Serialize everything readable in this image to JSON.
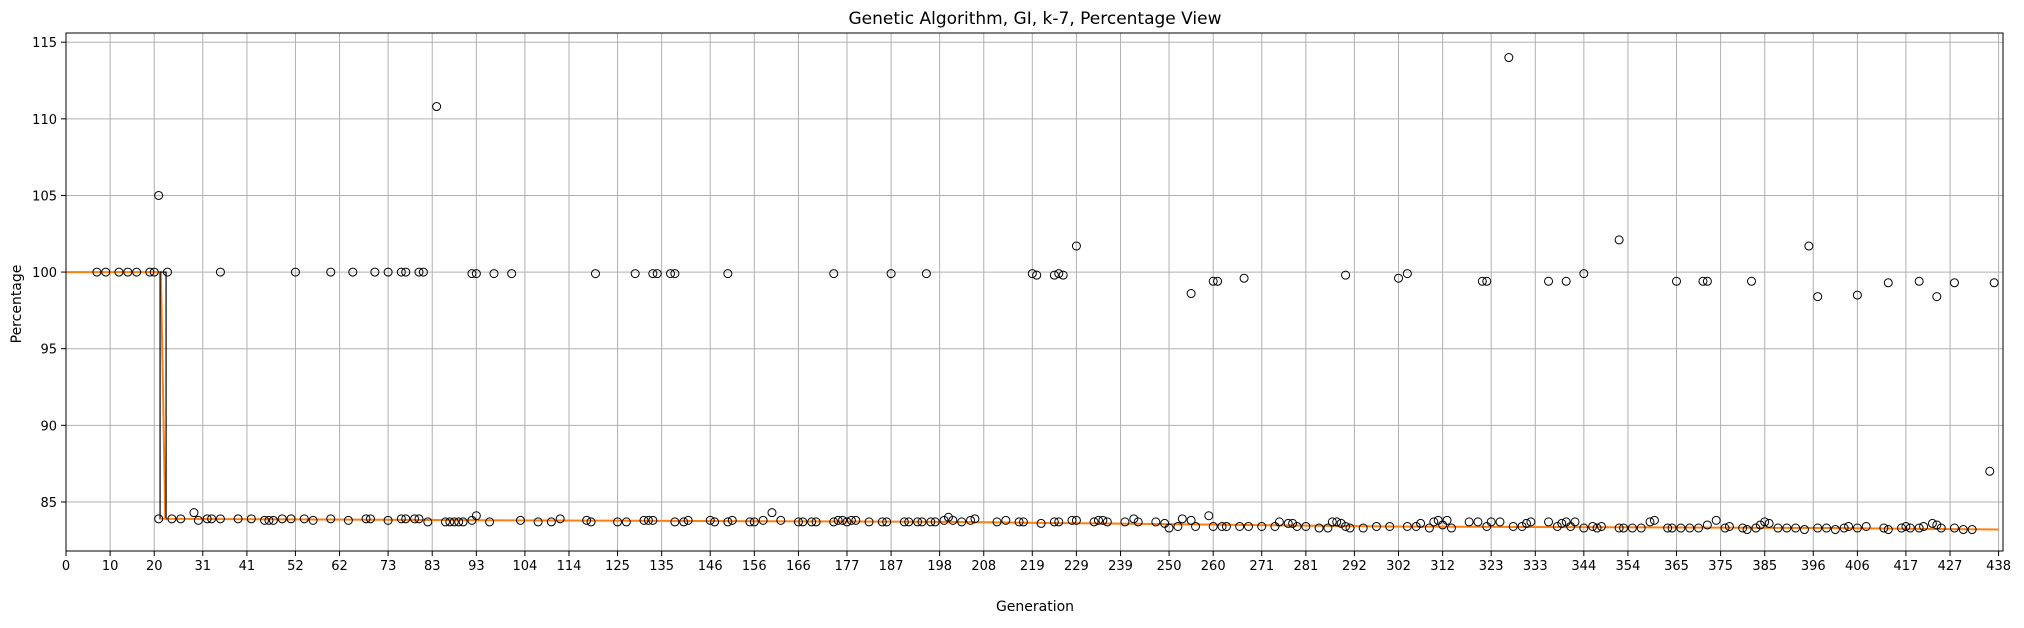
{
  "chart_data": {
    "type": "box",
    "title": "Genetic Algorithm, GI, k-7, Percentage View",
    "xlabel": "Generation",
    "ylabel": "Percentage",
    "xlim": [
      0,
      439
    ],
    "ylim": [
      81.8,
      115.6
    ],
    "x_ticks": [
      0,
      10,
      20,
      31,
      41,
      52,
      62,
      73,
      83,
      93,
      104,
      114,
      125,
      135,
      146,
      156,
      166,
      177,
      187,
      198,
      208,
      219,
      229,
      239,
      250,
      260,
      271,
      281,
      292,
      302,
      312,
      323,
      333,
      344,
      354,
      365,
      375,
      385,
      396,
      406,
      417,
      427,
      438
    ],
    "y_ticks": [
      85,
      90,
      95,
      100,
      105,
      110,
      115
    ],
    "grid": true,
    "median_color": "#ff7f0e",
    "box_color": "#000000",
    "median_line": [
      [
        0,
        100.0
      ],
      [
        21.5,
        100.0
      ],
      [
        22.5,
        83.9
      ],
      [
        100,
        83.8
      ],
      [
        200,
        83.7
      ],
      [
        300,
        83.4
      ],
      [
        400,
        83.3
      ],
      [
        438,
        83.2
      ]
    ],
    "boxes": [
      {
        "x": 22,
        "q1": 83.9,
        "q3": 100.0,
        "median": 83.9
      }
    ],
    "outliers": [
      [
        7,
        100.0
      ],
      [
        9,
        100.0
      ],
      [
        12,
        100.0
      ],
      [
        14,
        100.0
      ],
      [
        16,
        100.0
      ],
      [
        19,
        100.0
      ],
      [
        20,
        100.0
      ],
      [
        21,
        105.0
      ],
      [
        23,
        100.0
      ],
      [
        35,
        100.0
      ],
      [
        52,
        100.0
      ],
      [
        60,
        100.0
      ],
      [
        65,
        100.0
      ],
      [
        70,
        100.0
      ],
      [
        73,
        100.0
      ],
      [
        76,
        100.0
      ],
      [
        77,
        100.0
      ],
      [
        80,
        100.0
      ],
      [
        81,
        100.0
      ],
      [
        84,
        110.8
      ],
      [
        92,
        99.9
      ],
      [
        93,
        99.9
      ],
      [
        97,
        99.9
      ],
      [
        101,
        99.9
      ],
      [
        120,
        99.9
      ],
      [
        129,
        99.9
      ],
      [
        133,
        99.9
      ],
      [
        134,
        99.9
      ],
      [
        137,
        99.9
      ],
      [
        138,
        99.9
      ],
      [
        150,
        99.9
      ],
      [
        174,
        99.9
      ],
      [
        187,
        99.9
      ],
      [
        195,
        99.9
      ],
      [
        219,
        99.9
      ],
      [
        220,
        99.8
      ],
      [
        224,
        99.8
      ],
      [
        225,
        99.9
      ],
      [
        226,
        99.8
      ],
      [
        229,
        101.7
      ],
      [
        255,
        98.6
      ],
      [
        260,
        99.4
      ],
      [
        261,
        99.4
      ],
      [
        267,
        99.6
      ],
      [
        290,
        99.8
      ],
      [
        302,
        99.6
      ],
      [
        304,
        99.9
      ],
      [
        321,
        99.4
      ],
      [
        322,
        99.4
      ],
      [
        327,
        114.0
      ],
      [
        336,
        99.4
      ],
      [
        340,
        99.4
      ],
      [
        344,
        99.9
      ],
      [
        352,
        102.1
      ],
      [
        365,
        99.4
      ],
      [
        371,
        99.4
      ],
      [
        372,
        99.4
      ],
      [
        382,
        99.4
      ],
      [
        395,
        101.7
      ],
      [
        397,
        98.4
      ],
      [
        406,
        98.5
      ],
      [
        413,
        99.3
      ],
      [
        420,
        99.4
      ],
      [
        424,
        98.4
      ],
      [
        428,
        99.3
      ],
      [
        436,
        87.0
      ],
      [
        437,
        99.3
      ],
      [
        21,
        83.9
      ],
      [
        24,
        83.9
      ],
      [
        26,
        83.9
      ],
      [
        29,
        84.3
      ],
      [
        30,
        83.8
      ],
      [
        32,
        83.9
      ],
      [
        33,
        83.9
      ],
      [
        35,
        83.9
      ],
      [
        39,
        83.9
      ],
      [
        42,
        83.9
      ],
      [
        45,
        83.8
      ],
      [
        46,
        83.8
      ],
      [
        47,
        83.8
      ],
      [
        49,
        83.9
      ],
      [
        51,
        83.9
      ],
      [
        54,
        83.9
      ],
      [
        56,
        83.8
      ],
      [
        60,
        83.9
      ],
      [
        64,
        83.8
      ],
      [
        68,
        83.9
      ],
      [
        69,
        83.9
      ],
      [
        73,
        83.8
      ],
      [
        76,
        83.9
      ],
      [
        77,
        83.9
      ],
      [
        79,
        83.9
      ],
      [
        80,
        83.9
      ],
      [
        82,
        83.7
      ],
      [
        86,
        83.7
      ],
      [
        87,
        83.7
      ],
      [
        88,
        83.7
      ],
      [
        89,
        83.7
      ],
      [
        90,
        83.7
      ],
      [
        92,
        83.8
      ],
      [
        93,
        84.1
      ],
      [
        96,
        83.7
      ],
      [
        103,
        83.8
      ],
      [
        107,
        83.7
      ],
      [
        110,
        83.7
      ],
      [
        112,
        83.9
      ],
      [
        118,
        83.8
      ],
      [
        119,
        83.7
      ],
      [
        125,
        83.7
      ],
      [
        127,
        83.7
      ],
      [
        131,
        83.8
      ],
      [
        132,
        83.8
      ],
      [
        133,
        83.8
      ],
      [
        138,
        83.7
      ],
      [
        140,
        83.7
      ],
      [
        141,
        83.8
      ],
      [
        146,
        83.8
      ],
      [
        147,
        83.7
      ],
      [
        150,
        83.7
      ],
      [
        151,
        83.8
      ],
      [
        155,
        83.7
      ],
      [
        156,
        83.7
      ],
      [
        158,
        83.8
      ],
      [
        160,
        84.3
      ],
      [
        162,
        83.8
      ],
      [
        166,
        83.7
      ],
      [
        167,
        83.7
      ],
      [
        169,
        83.7
      ],
      [
        170,
        83.7
      ],
      [
        174,
        83.7
      ],
      [
        175,
        83.8
      ],
      [
        176,
        83.8
      ],
      [
        177,
        83.7
      ],
      [
        178,
        83.8
      ],
      [
        179,
        83.8
      ],
      [
        182,
        83.7
      ],
      [
        185,
        83.7
      ],
      [
        186,
        83.7
      ],
      [
        190,
        83.7
      ],
      [
        191,
        83.7
      ],
      [
        193,
        83.7
      ],
      [
        194,
        83.7
      ],
      [
        196,
        83.7
      ],
      [
        197,
        83.7
      ],
      [
        199,
        83.8
      ],
      [
        200,
        84.0
      ],
      [
        201,
        83.8
      ],
      [
        203,
        83.7
      ],
      [
        205,
        83.8
      ],
      [
        206,
        83.9
      ],
      [
        211,
        83.7
      ],
      [
        213,
        83.8
      ],
      [
        216,
        83.7
      ],
      [
        217,
        83.7
      ],
      [
        221,
        83.6
      ],
      [
        224,
        83.7
      ],
      [
        225,
        83.7
      ],
      [
        228,
        83.8
      ],
      [
        229,
        83.8
      ],
      [
        233,
        83.7
      ],
      [
        234,
        83.8
      ],
      [
        235,
        83.8
      ],
      [
        236,
        83.7
      ],
      [
        240,
        83.7
      ],
      [
        242,
        83.9
      ],
      [
        243,
        83.7
      ],
      [
        247,
        83.7
      ],
      [
        249,
        83.6
      ],
      [
        250,
        83.3
      ],
      [
        252,
        83.4
      ],
      [
        253,
        83.9
      ],
      [
        255,
        83.8
      ],
      [
        256,
        83.4
      ],
      [
        259,
        84.1
      ],
      [
        260,
        83.4
      ],
      [
        262,
        83.4
      ],
      [
        263,
        83.4
      ],
      [
        266,
        83.4
      ],
      [
        268,
        83.4
      ],
      [
        271,
        83.4
      ],
      [
        274,
        83.4
      ],
      [
        275,
        83.7
      ],
      [
        277,
        83.6
      ],
      [
        278,
        83.6
      ],
      [
        279,
        83.4
      ],
      [
        281,
        83.4
      ],
      [
        284,
        83.3
      ],
      [
        286,
        83.3
      ],
      [
        287,
        83.7
      ],
      [
        288,
        83.7
      ],
      [
        289,
        83.6
      ],
      [
        290,
        83.4
      ],
      [
        291,
        83.3
      ],
      [
        294,
        83.3
      ],
      [
        297,
        83.4
      ],
      [
        300,
        83.4
      ],
      [
        304,
        83.4
      ],
      [
        306,
        83.4
      ],
      [
        307,
        83.6
      ],
      [
        309,
        83.3
      ],
      [
        310,
        83.7
      ],
      [
        311,
        83.8
      ],
      [
        312,
        83.5
      ],
      [
        313,
        83.8
      ],
      [
        314,
        83.3
      ],
      [
        318,
        83.7
      ],
      [
        320,
        83.7
      ],
      [
        322,
        83.4
      ],
      [
        323,
        83.7
      ],
      [
        325,
        83.7
      ],
      [
        328,
        83.4
      ],
      [
        330,
        83.4
      ],
      [
        331,
        83.6
      ],
      [
        332,
        83.7
      ],
      [
        336,
        83.7
      ],
      [
        338,
        83.4
      ],
      [
        339,
        83.6
      ],
      [
        340,
        83.7
      ],
      [
        341,
        83.4
      ],
      [
        342,
        83.7
      ],
      [
        344,
        83.3
      ],
      [
        346,
        83.4
      ],
      [
        347,
        83.3
      ],
      [
        348,
        83.4
      ],
      [
        352,
        83.3
      ],
      [
        353,
        83.3
      ],
      [
        355,
        83.3
      ],
      [
        357,
        83.3
      ],
      [
        359,
        83.7
      ],
      [
        360,
        83.8
      ],
      [
        363,
        83.3
      ],
      [
        364,
        83.3
      ],
      [
        366,
        83.3
      ],
      [
        368,
        83.3
      ],
      [
        370,
        83.3
      ],
      [
        372,
        83.5
      ],
      [
        374,
        83.8
      ],
      [
        376,
        83.3
      ],
      [
        377,
        83.4
      ],
      [
        380,
        83.3
      ],
      [
        381,
        83.2
      ],
      [
        383,
        83.3
      ],
      [
        384,
        83.5
      ],
      [
        385,
        83.7
      ],
      [
        386,
        83.6
      ],
      [
        388,
        83.3
      ],
      [
        390,
        83.3
      ],
      [
        392,
        83.3
      ],
      [
        394,
        83.2
      ],
      [
        397,
        83.3
      ],
      [
        399,
        83.3
      ],
      [
        401,
        83.2
      ],
      [
        403,
        83.3
      ],
      [
        404,
        83.4
      ],
      [
        406,
        83.3
      ],
      [
        408,
        83.4
      ],
      [
        412,
        83.3
      ],
      [
        413,
        83.2
      ],
      [
        416,
        83.3
      ],
      [
        417,
        83.4
      ],
      [
        418,
        83.3
      ],
      [
        420,
        83.3
      ],
      [
        421,
        83.4
      ],
      [
        423,
        83.6
      ],
      [
        424,
        83.5
      ],
      [
        425,
        83.3
      ],
      [
        428,
        83.3
      ],
      [
        430,
        83.2
      ],
      [
        432,
        83.2
      ]
    ]
  }
}
